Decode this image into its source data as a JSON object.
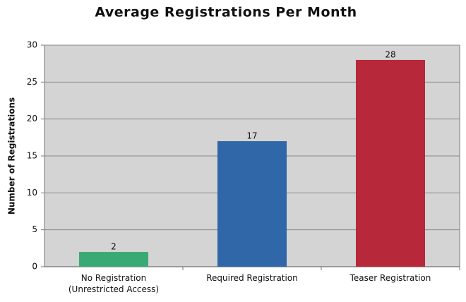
{
  "chart_data": {
    "type": "bar",
    "title": "Average Registrations Per Month",
    "y_label": "Number of Registrations",
    "categories": [
      "No Registration\n(Unrestricted Access)",
      "Required Registration",
      "Teaser Registration"
    ],
    "values": [
      2,
      17,
      28
    ],
    "colors": [
      "#3aaa74",
      "#3067a9",
      "#b8283b"
    ],
    "ylim": [
      0,
      30
    ],
    "yticks": [
      0,
      5,
      10,
      15,
      20,
      25,
      30
    ],
    "grid": true
  }
}
